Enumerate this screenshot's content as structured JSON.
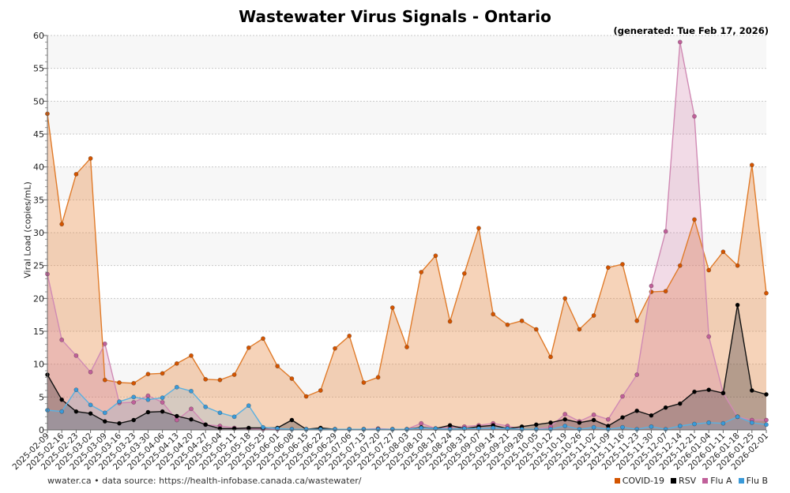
{
  "chart_data": {
    "type": "area",
    "title": "Wastewater Virus Signals - Ontario",
    "subtitle": "(generated: Tue Feb 17, 2026)",
    "xlabel": "",
    "ylabel": "Viral Load (copies/mL)",
    "ylim": [
      0,
      60
    ],
    "yticks": [
      0,
      5,
      10,
      15,
      20,
      25,
      30,
      35,
      40,
      45,
      50,
      55,
      60
    ],
    "grid": true,
    "legend_position": "bottom-right",
    "x": [
      "2025-02-09",
      "2025-02-16",
      "2025-02-23",
      "2025-03-02",
      "2025-03-09",
      "2025-03-16",
      "2025-03-23",
      "2025-03-30",
      "2025-04-06",
      "2025-04-13",
      "2025-04-20",
      "2025-04-27",
      "2025-05-04",
      "2025-05-11",
      "2025-05-18",
      "2025-05-25",
      "2025-06-01",
      "2025-06-08",
      "2025-06-15",
      "2025-06-22",
      "2025-06-29",
      "2025-07-06",
      "2025-07-13",
      "2025-07-20",
      "2025-07-27",
      "2025-08-03",
      "2025-08-10",
      "2025-08-17",
      "2025-08-24",
      "2025-08-31",
      "2025-09-07",
      "2025-09-14",
      "2025-09-21",
      "2025-09-28",
      "2025-10-05",
      "2025-10-12",
      "2025-10-19",
      "2025-10-26",
      "2025-11-02",
      "2025-11-09",
      "2025-11-16",
      "2025-11-23",
      "2025-11-30",
      "2025-12-07",
      "2025-12-14",
      "2025-12-21",
      "2026-01-04",
      "2026-01-11",
      "2026-01-18",
      "2026-01-25",
      "2026-02-01"
    ],
    "series": [
      {
        "name": "COVID-19",
        "color": "#d35400",
        "line": "#e07b2a",
        "fill": "rgba(232,140,70,0.38)",
        "values": [
          48.1,
          31.3,
          38.9,
          41.3,
          7.6,
          7.2,
          7.1,
          8.5,
          8.6,
          10.1,
          11.3,
          7.7,
          7.6,
          8.4,
          12.5,
          13.9,
          9.7,
          7.8,
          5.1,
          6.0,
          12.4,
          14.3,
          7.2,
          8.0,
          18.6,
          12.6,
          24.0,
          26.5,
          16.5,
          23.8,
          30.7,
          17.6,
          16.0,
          16.6,
          15.3,
          11.1,
          20.0,
          15.3,
          17.4,
          24.7,
          25.2,
          16.6,
          21.0,
          21.1,
          25.0,
          32.0,
          24.3,
          27.1,
          25.0,
          40.3,
          20.8
        ]
      },
      {
        "name": "Flu A",
        "color": "#c0609a",
        "line": "#d08ab4",
        "fill": "rgba(204,110,160,0.25)",
        "values": [
          23.7,
          13.7,
          11.3,
          8.8,
          13.1,
          4.1,
          4.2,
          5.2,
          4.2,
          1.5,
          3.2,
          0.8,
          0.6,
          0.3,
          0.2,
          0.1,
          0.1,
          0.1,
          0.1,
          0.1,
          0.1,
          0.1,
          0.1,
          0.2,
          0.1,
          0.1,
          1.0,
          0.2,
          0.4,
          0.5,
          0.7,
          1.0,
          0.6,
          0.1,
          0.1,
          0.5,
          2.4,
          1.3,
          2.3,
          1.6,
          5.1,
          8.4,
          21.9,
          30.2,
          59.0,
          47.7,
          14.2,
          5.6,
          2.0,
          1.5,
          1.5
        ]
      },
      {
        "name": "RSV",
        "color": "#000000",
        "line": "#111111",
        "fill": "rgba(40,40,50,0.3)",
        "values": [
          8.4,
          4.6,
          2.8,
          2.5,
          1.3,
          1.0,
          1.5,
          2.7,
          2.8,
          2.1,
          1.6,
          0.8,
          0.2,
          0.2,
          0.3,
          0.3,
          0.3,
          1.5,
          0.1,
          0.3,
          0.1,
          0.1,
          0.1,
          0.1,
          0.1,
          0.1,
          0.4,
          0.2,
          0.7,
          0.2,
          0.5,
          0.7,
          0.2,
          0.5,
          0.8,
          1.1,
          1.6,
          1.1,
          1.5,
          0.6,
          1.9,
          2.9,
          2.2,
          3.4,
          4.0,
          5.8,
          6.1,
          5.6,
          19.0,
          6.0,
          5.4
        ]
      },
      {
        "name": "Flu B",
        "color": "#3a9ad9",
        "line": "#5ab0e0",
        "fill": "rgba(90,170,220,0.2)",
        "values": [
          3.0,
          2.8,
          6.1,
          3.8,
          2.6,
          4.3,
          5.0,
          4.6,
          4.9,
          6.5,
          5.9,
          3.5,
          2.6,
          2.0,
          3.7,
          0.4,
          0.2,
          0.1,
          0.1,
          0.1,
          0.1,
          0.1,
          0.1,
          0.1,
          0.1,
          0.1,
          0.3,
          0.2,
          0.1,
          0.2,
          0.2,
          0.3,
          0.2,
          0.1,
          0.1,
          0.1,
          0.6,
          0.1,
          0.4,
          0.1,
          0.4,
          0.1,
          0.5,
          0.1,
          0.6,
          0.9,
          1.1,
          1.0,
          2.0,
          1.1,
          0.8
        ]
      }
    ]
  },
  "footer": {
    "source": "wwater.ca • data source: https://health-infobase.canada.ca/wastewater/"
  }
}
